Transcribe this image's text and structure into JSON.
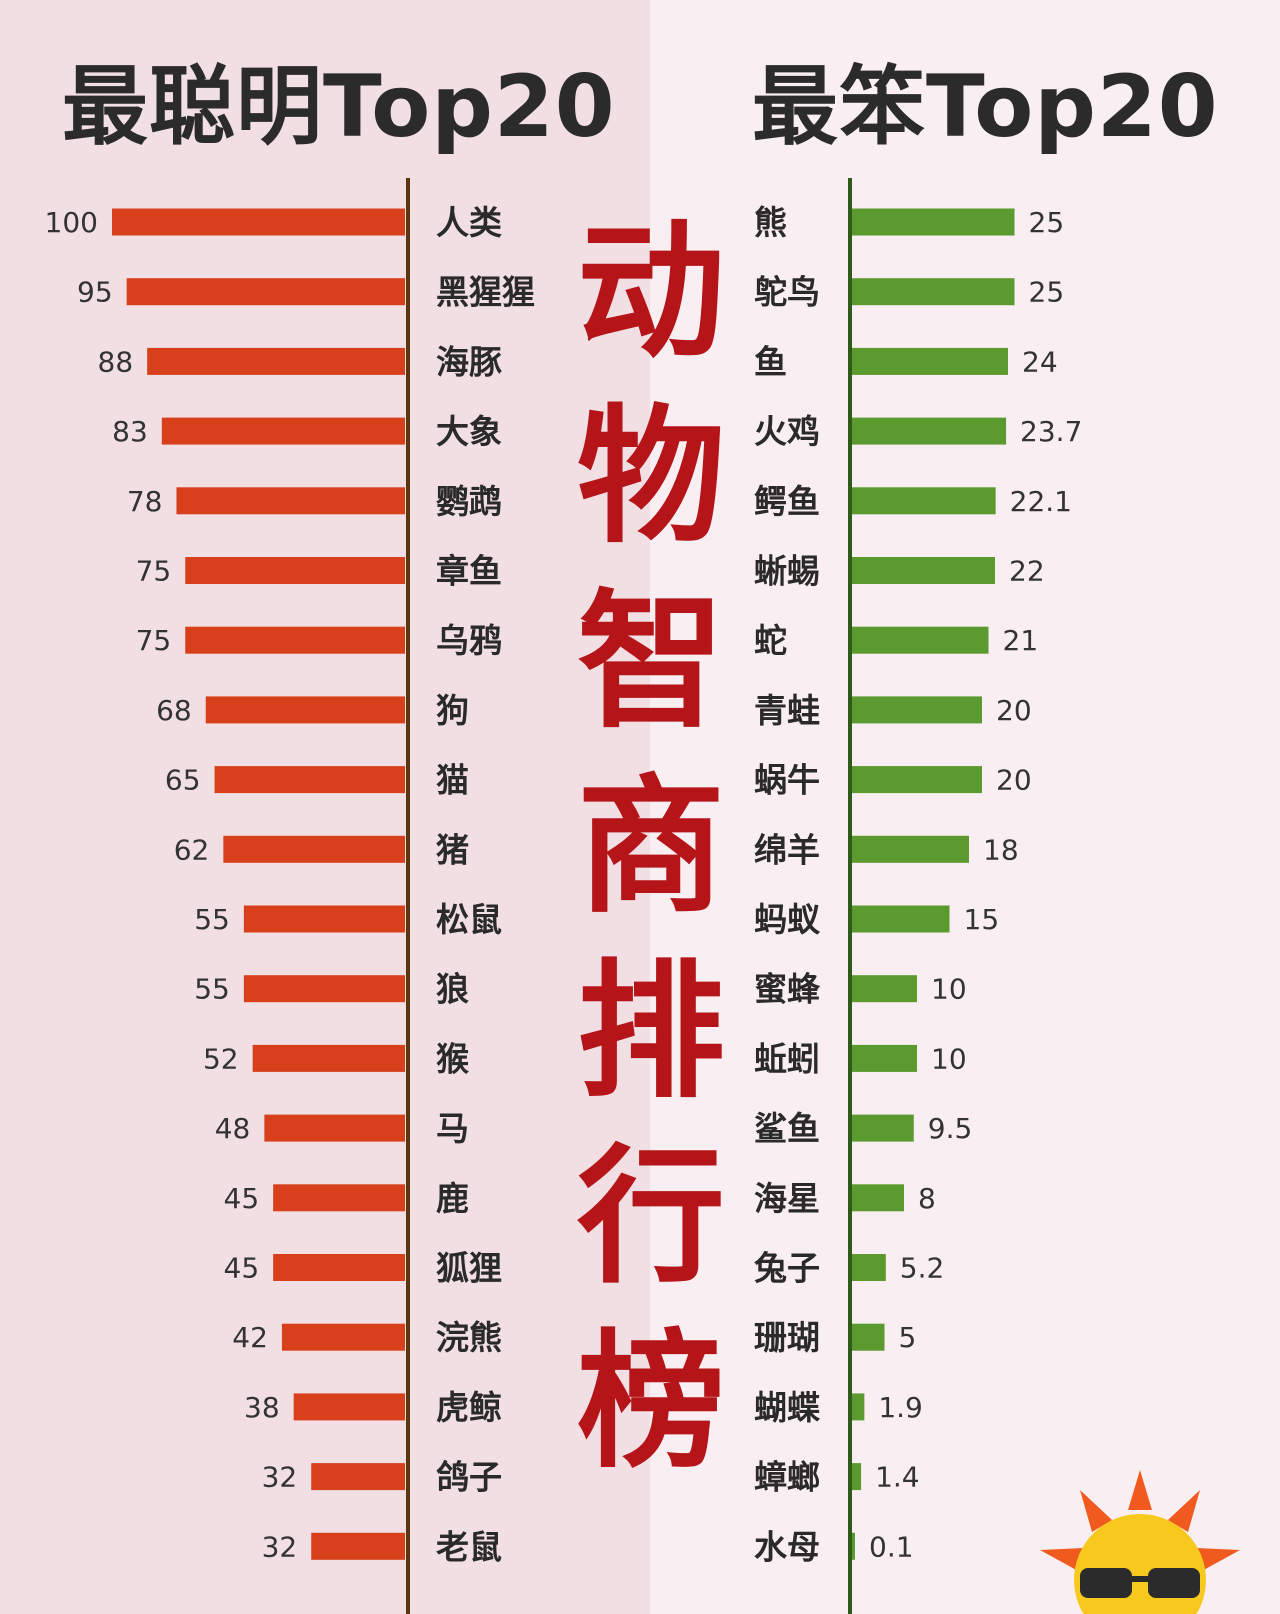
{
  "headings": {
    "left": "最聪明Top20",
    "right": "最笨Top20",
    "center": [
      "动",
      "物",
      "智",
      "商",
      "排",
      "行",
      "榜"
    ]
  },
  "colors": {
    "smart_bar": "#d8401c",
    "dumb_bar": "#5a9a2e",
    "smart_axis": "#5b3410",
    "dumb_axis": "#2e5a1a",
    "center_title": "#b51418"
  },
  "chart_data": [
    {
      "type": "bar",
      "orientation": "horizontal",
      "title": "最聪明Top20",
      "categories": [
        "人类",
        "黑猩猩",
        "海豚",
        "大象",
        "鹦鹉",
        "章鱼",
        "乌鸦",
        "狗",
        "猫",
        "猪",
        "松鼠",
        "狼",
        "猴",
        "马",
        "鹿",
        "狐狸",
        "浣熊",
        "虎鲸",
        "鸽子",
        "老鼠"
      ],
      "values": [
        100,
        95,
        88,
        83,
        78,
        75,
        75,
        68,
        65,
        62,
        55,
        55,
        52,
        48,
        45,
        45,
        42,
        38,
        32,
        32
      ],
      "value_labels": [
        "100",
        "95",
        "88",
        "83",
        "78",
        "75",
        "75",
        "68",
        "65",
        "62",
        "55",
        "55",
        "52",
        "48",
        "45",
        "45",
        "42",
        "38",
        "32",
        "32"
      ],
      "bar_direction": "right-to-left",
      "grid": false
    },
    {
      "type": "bar",
      "orientation": "horizontal",
      "title": "最笨Top20",
      "categories": [
        "熊",
        "鸵鸟",
        "鱼",
        "火鸡",
        "鳄鱼",
        "蜥蜴",
        "蛇",
        "青蛙",
        "蜗牛",
        "绵羊",
        "蚂蚁",
        "蜜蜂",
        "蚯蚓",
        "鲨鱼",
        "海星",
        "兔子",
        "珊瑚",
        "蝴蝶",
        "蟑螂",
        "水母"
      ],
      "values": [
        25,
        25,
        24,
        23.7,
        22.1,
        22,
        21,
        20,
        20,
        18,
        15,
        10,
        10,
        9.5,
        8,
        5.2,
        5,
        1.9,
        1.4,
        0.1
      ],
      "value_labels": [
        "25",
        "25",
        "24",
        "23.7",
        "22.1",
        "22",
        "21",
        "20",
        "20",
        "18",
        "15",
        "10",
        "10",
        "9.5",
        "8",
        "5.2",
        "5",
        "1.9",
        "1.4",
        "0.1"
      ],
      "bar_direction": "left-to-right",
      "grid": false
    }
  ]
}
